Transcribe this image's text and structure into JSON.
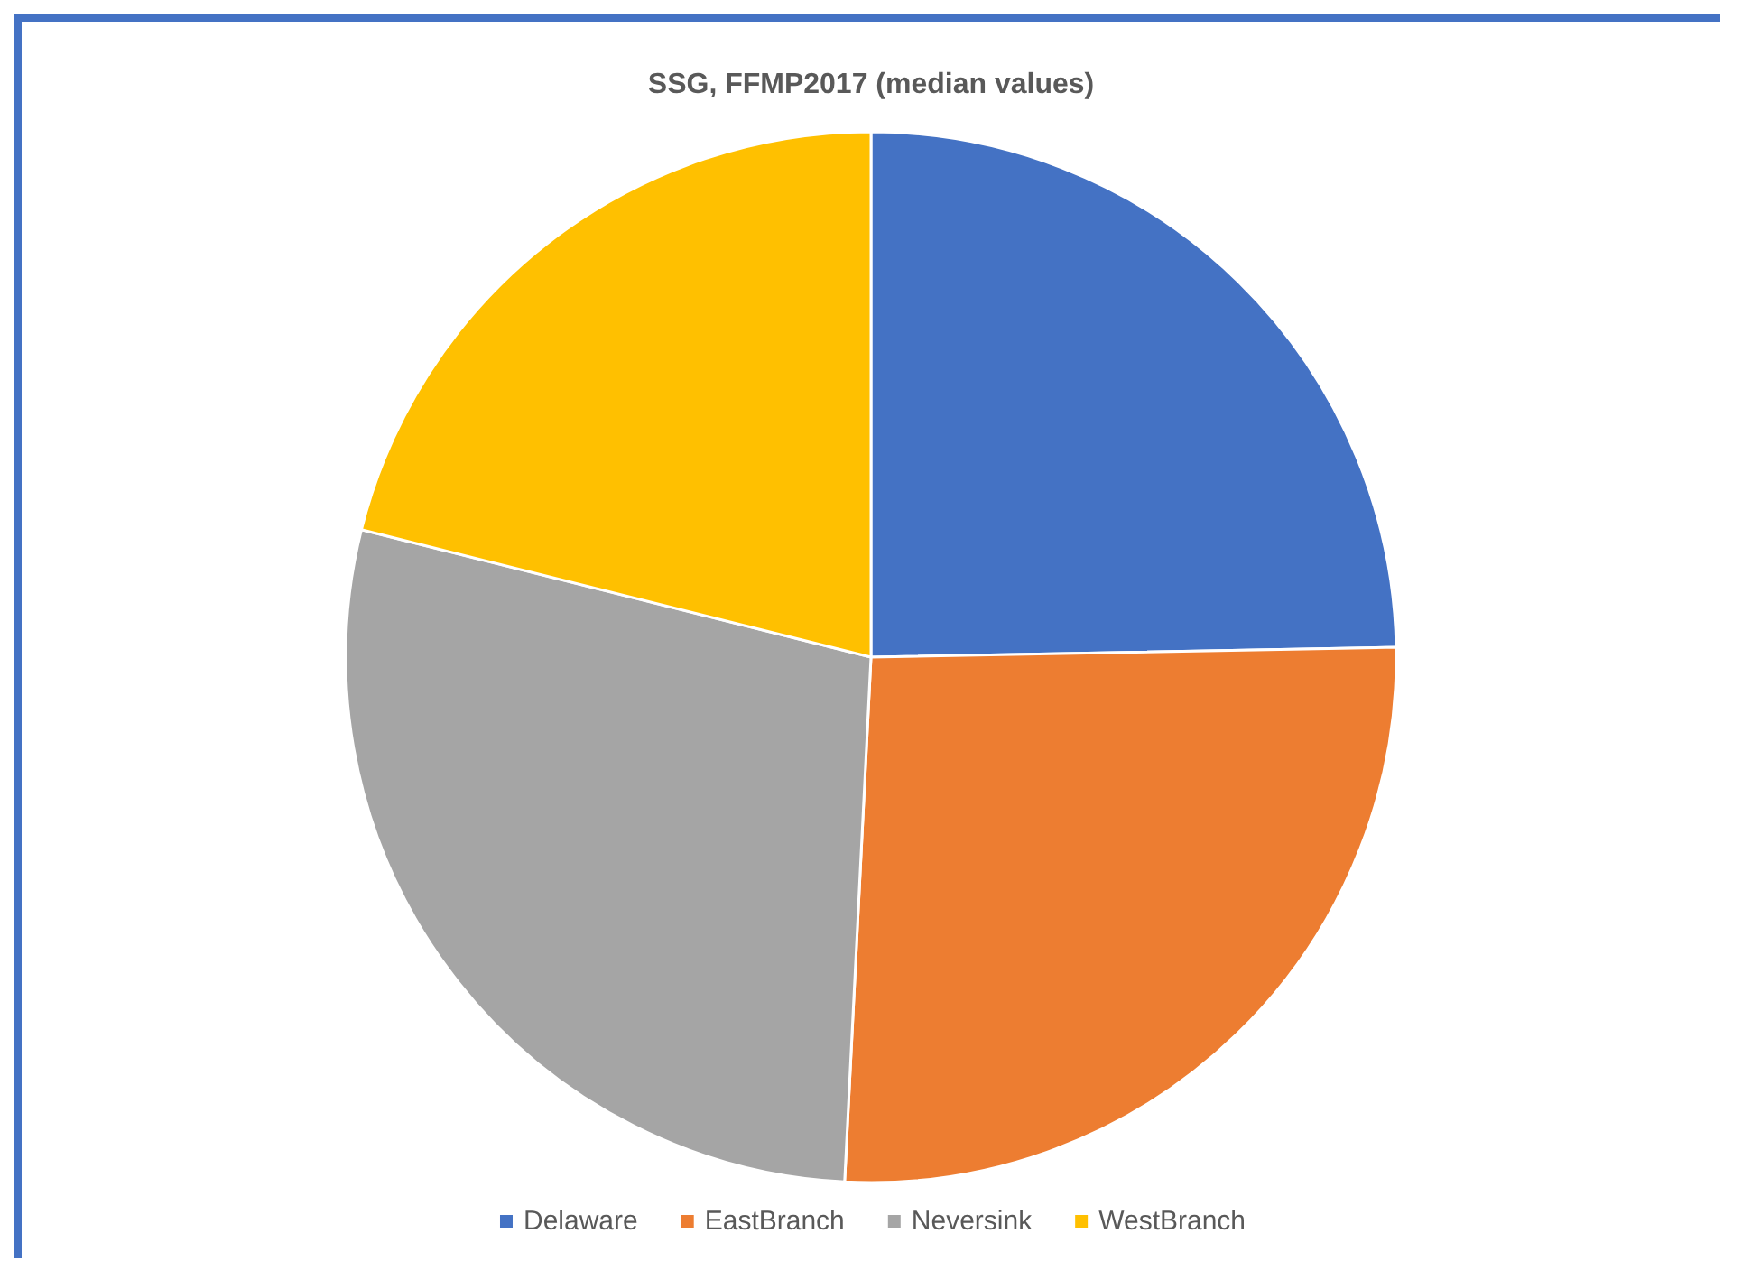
{
  "chart_data": {
    "type": "pie",
    "title": "SSG, FFMP2017 (median values)",
    "categories": [
      "Delaware",
      "EastBranch",
      "Neversink",
      "WestBranch"
    ],
    "values": [
      24.7,
      26.1,
      28.1,
      21.1
    ],
    "colors": [
      "#4472c4",
      "#ed7d31",
      "#a5a5a5",
      "#ffc000"
    ],
    "legend": "bottom"
  }
}
